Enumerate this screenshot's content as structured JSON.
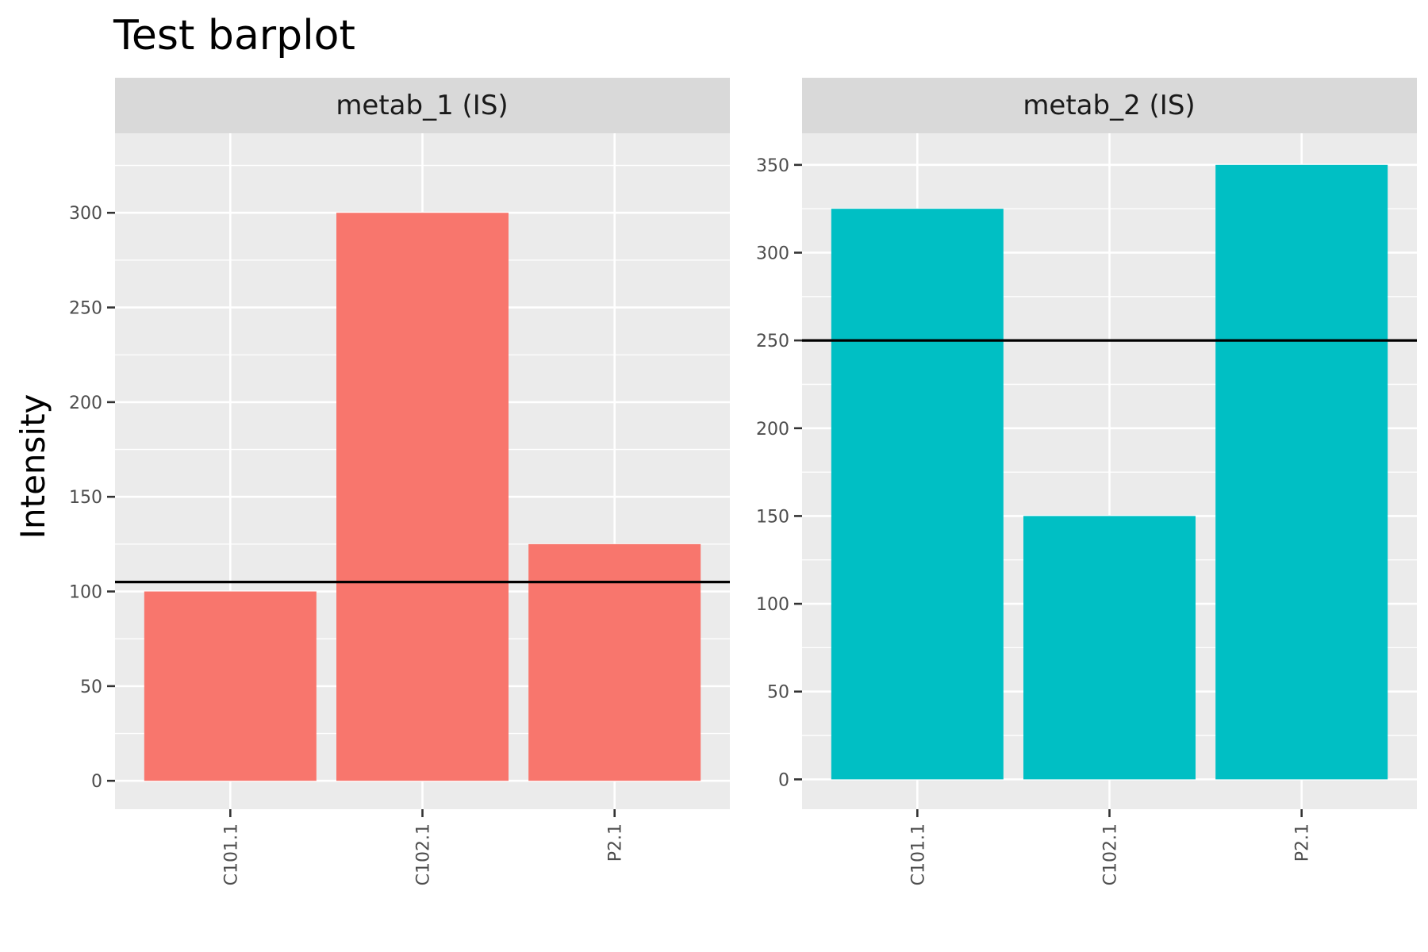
{
  "chart_data": {
    "type": "bar",
    "title": "Test barplot",
    "ylabel": "Intensity",
    "xlabel": "",
    "categories": [
      "C101.1",
      "C102.1",
      "P2.1"
    ],
    "grid": true,
    "facets": [
      {
        "label": "metab_1 (IS)",
        "color": "#F8766D",
        "values": [
          100,
          300,
          125
        ],
        "hline": 105,
        "ylim": [
          -15,
          342
        ],
        "yticks": [
          0,
          50,
          100,
          150,
          200,
          250,
          300
        ]
      },
      {
        "label": "metab_2 (IS)",
        "color": "#00BFC4",
        "values": [
          325,
          150,
          350
        ],
        "hline": 250,
        "ylim": [
          -17,
          368
        ],
        "yticks": [
          0,
          50,
          100,
          150,
          200,
          250,
          300,
          350
        ]
      }
    ]
  }
}
